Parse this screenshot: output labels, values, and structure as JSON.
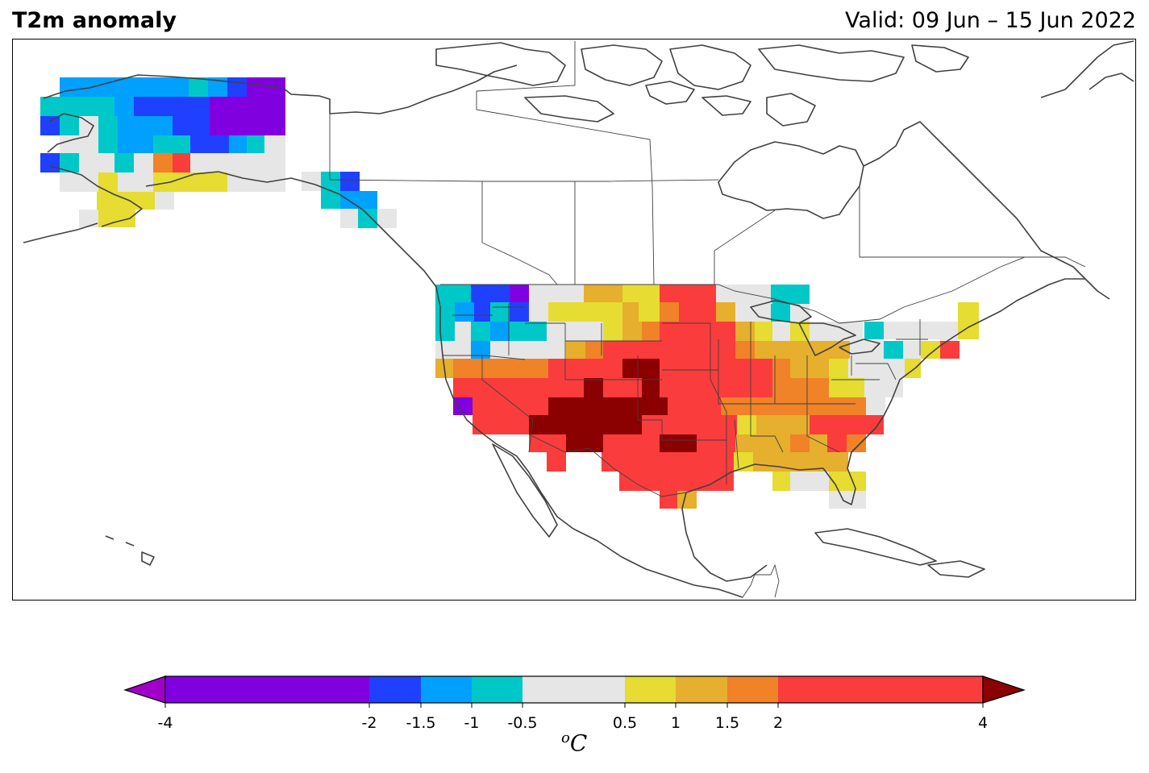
{
  "header": {
    "title": "T2m anomaly",
    "valid": "Valid: 09 Jun – 15 Jun 2022"
  },
  "colorbar": {
    "unit_sup": "o",
    "unit_main": "C",
    "levels": [
      -4,
      -2,
      -1.5,
      -1,
      -0.5,
      0.5,
      1,
      1.5,
      2,
      4
    ],
    "tick_labels": [
      "-4",
      "-2",
      "-1.5",
      "-1",
      "-0.5",
      "0.5",
      "1",
      "1.5",
      "2",
      "4"
    ],
    "colors": [
      "#8000e0",
      "#2040ff",
      "#00a0ff",
      "#00c8c8",
      "#e6e6e6",
      "#e6dc32",
      "#e6af2d",
      "#f08228",
      "#fa3c3c"
    ],
    "under_color": "#a000c8",
    "over_color": "#8b0000"
  },
  "map": {
    "projection": "North America, lat-lon",
    "coastline_color": "#404040",
    "anomaly_regions": [
      {
        "region": "Alaska north slope",
        "level": "-2 to -4"
      },
      {
        "region": "Alaska interior",
        "level": "-1.5 to -2"
      },
      {
        "region": "Alaska south coast",
        "level": "0.5 to 1"
      },
      {
        "region": "Pacific Northwest",
        "level": "-1 to -2"
      },
      {
        "region": "Southern Plains / Four Corners",
        "level": "> 4"
      },
      {
        "region": "Central and Southern US",
        "level": "2 to 4"
      },
      {
        "region": "Southeast US",
        "level": "1 to 2"
      },
      {
        "region": "Great Lakes",
        "level": "-0.5 to -1"
      },
      {
        "region": "Northeast US",
        "level": "-0.5 to 0.5"
      },
      {
        "region": "Florida",
        "level": "0.5 to 1"
      }
    ]
  }
}
